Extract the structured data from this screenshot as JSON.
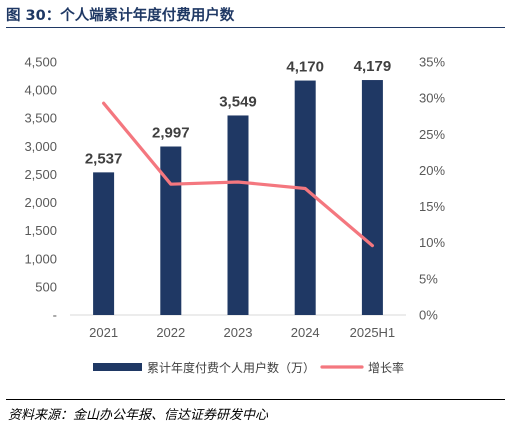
{
  "header": {
    "title": "图 30：个人端累计年度付费用户数"
  },
  "footer": {
    "source": "资料来源：金山办公年报、信达证券研发中心"
  },
  "colors": {
    "bar": "#1f3864",
    "line": "#f4777f",
    "title": "#1f3864"
  },
  "chart_data": {
    "type": "bar",
    "categories": [
      "2021",
      "2022",
      "2023",
      "2024",
      "2025H1"
    ],
    "series": [
      {
        "name": "累计年度付费个人用户数（万）",
        "type": "bar",
        "axis": "left",
        "values": [
          2537,
          2997,
          3549,
          4170,
          4179
        ],
        "labels": [
          "2,537",
          "2,997",
          "3,549",
          "4,170",
          "4,179"
        ]
      },
      {
        "name": "增长率",
        "type": "line",
        "axis": "right",
        "values": [
          29.3,
          18.1,
          18.4,
          17.5,
          9.6
        ]
      }
    ],
    "y_left": {
      "ylim": [
        0,
        4500
      ],
      "ticks": [
        0,
        500,
        1000,
        1500,
        2000,
        2500,
        3000,
        3500,
        4000,
        4500
      ],
      "tick_labels": [
        "-",
        "500",
        "1,000",
        "1,500",
        "2,000",
        "2,500",
        "3,000",
        "3,500",
        "4,000",
        "4,500"
      ]
    },
    "y_right": {
      "ylim": [
        0,
        35
      ],
      "ticks": [
        0,
        5,
        10,
        15,
        20,
        25,
        30,
        35
      ],
      "tick_labels": [
        "0%",
        "5%",
        "10%",
        "15%",
        "20%",
        "25%",
        "30%",
        "35%"
      ]
    },
    "grid": false,
    "legend_position": "bottom"
  }
}
